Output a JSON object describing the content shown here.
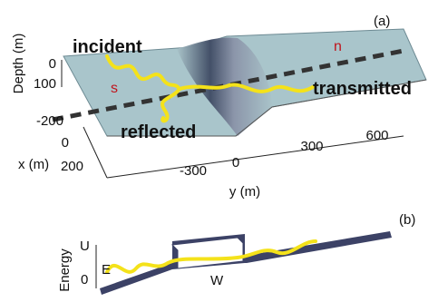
{
  "panel_a": {
    "label": "(a)",
    "depth_axis": {
      "title": "Depth (m)",
      "ticks": [
        "0",
        "100"
      ]
    },
    "x_axis": {
      "title": "x (m)",
      "ticks": [
        "-200",
        "0",
        "200"
      ]
    },
    "y_axis": {
      "title": "y (m)",
      "ticks": [
        "-300",
        "0",
        "300",
        "600"
      ]
    },
    "annotations": {
      "incident": "incident",
      "reflected": "reflected",
      "transmitted": "transmitted",
      "s": "s",
      "n": "n"
    }
  },
  "panel_b": {
    "label": "(b)",
    "axis_title": "Energy",
    "levels": [
      "U",
      "0"
    ],
    "energy": "E",
    "width": "W"
  }
}
